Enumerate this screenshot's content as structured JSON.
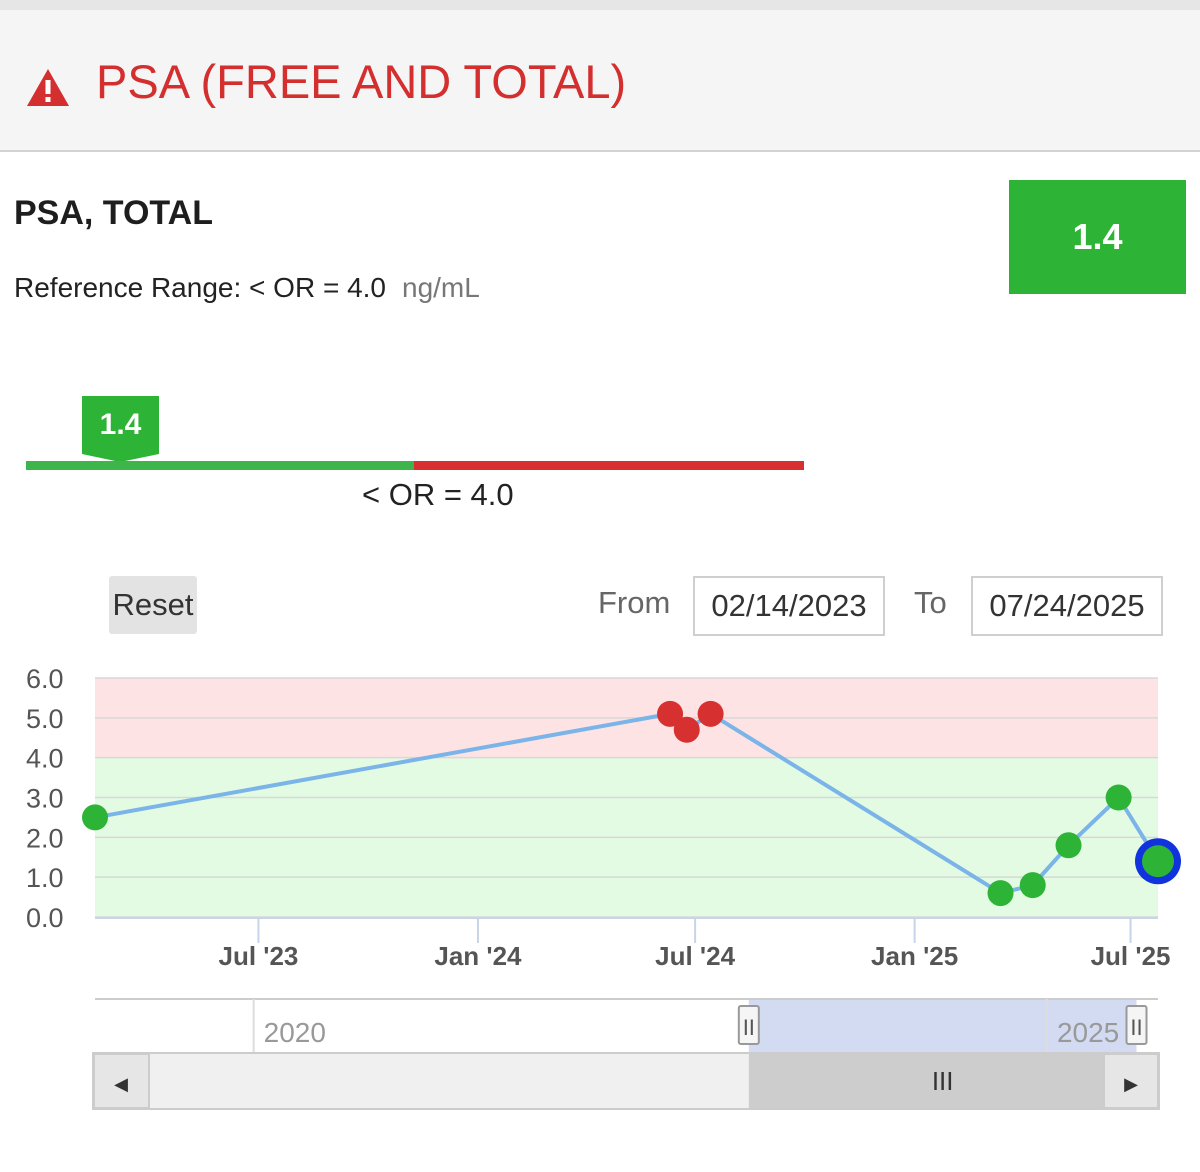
{
  "header": {
    "title": "PSA (FREE AND TOTAL)",
    "icon": "warning-icon",
    "title_color": "#d32f2f"
  },
  "test": {
    "name": "PSA, TOTAL",
    "reference_label": "Reference Range: < OR = 4.0",
    "unit": "ng/mL",
    "value": "1.4",
    "value_color": "#2db336"
  },
  "gauge": {
    "marker_value": "1.4",
    "marker_numeric": 1.4,
    "threshold_label": "< OR = 4.0",
    "threshold": 4.0,
    "max": 8.0
  },
  "controls": {
    "reset_label": "Reset",
    "from_label": "From",
    "from_value": "02/14/2023",
    "to_label": "To",
    "to_value": "07/24/2025"
  },
  "chart_data": {
    "type": "line",
    "title": "",
    "xlabel": "",
    "ylabel": "",
    "ylim": [
      0,
      6
    ],
    "yticks": [
      "0.0",
      "1.0",
      "2.0",
      "3.0",
      "4.0",
      "5.0",
      "6.0"
    ],
    "x_range": [
      "2023-02-14",
      "2025-07-24"
    ],
    "xticks": [
      {
        "label": "Jul '23",
        "date": "2023-07-01"
      },
      {
        "label": "Jan '24",
        "date": "2024-01-01"
      },
      {
        "label": "Jul '24",
        "date": "2024-07-01"
      },
      {
        "label": "Jan '25",
        "date": "2025-01-01"
      },
      {
        "label": "Jul '25",
        "date": "2025-07-01"
      }
    ],
    "bands": [
      {
        "from": 0,
        "to": 4.0,
        "color": "#e3fbe3",
        "status": "normal"
      },
      {
        "from": 4.0,
        "to": 6.0,
        "color": "#fde3e3",
        "status": "high"
      }
    ],
    "series": [
      {
        "name": "PSA, TOTAL",
        "line_color": "#7ab4e8",
        "points": [
          {
            "date": "2023-02-14",
            "value": 2.5,
            "status": "normal"
          },
          {
            "date": "2024-06-10",
            "value": 5.1,
            "status": "high"
          },
          {
            "date": "2024-06-24",
            "value": 4.7,
            "status": "high"
          },
          {
            "date": "2024-07-14",
            "value": 5.1,
            "status": "high"
          },
          {
            "date": "2025-03-14",
            "value": 0.6,
            "status": "normal"
          },
          {
            "date": "2025-04-10",
            "value": 0.8,
            "status": "normal"
          },
          {
            "date": "2025-05-10",
            "value": 1.8,
            "status": "normal"
          },
          {
            "date": "2025-06-21",
            "value": 3.0,
            "status": "normal"
          },
          {
            "date": "2025-07-24",
            "value": 1.4,
            "status": "normal",
            "selected": true
          }
        ]
      }
    ],
    "colors": {
      "normal": "#2db336",
      "high": "#d63030",
      "selected_ring": "#1133dd"
    }
  },
  "navigator": {
    "labels": [
      {
        "text": "2020",
        "year": 2020
      },
      {
        "text": "2025",
        "year": 2025
      }
    ],
    "year_range": [
      2019,
      2025.7
    ],
    "selected_range": [
      "2023-02-14",
      "2025-07-24"
    ],
    "left_arrow": "◀",
    "right_arrow": "▶",
    "thumb_grip": "III",
    "handle_grip": "II"
  }
}
